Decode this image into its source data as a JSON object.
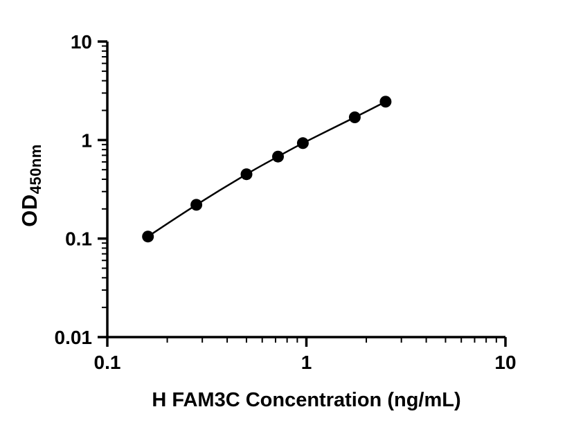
{
  "chart_data": {
    "type": "scatter",
    "title": "",
    "xlabel": "H FAM3C Concentration (ng/mL)",
    "ylabel_main": "OD",
    "ylabel_sub": "450nm",
    "x_scale": "log",
    "y_scale": "log",
    "xlim": [
      0.1,
      10
    ],
    "ylim": [
      0.01,
      10
    ],
    "x": [
      0.16,
      0.28,
      0.5,
      0.72,
      0.96,
      1.75,
      2.5
    ],
    "y": [
      0.105,
      0.22,
      0.45,
      0.68,
      0.93,
      1.7,
      2.45
    ],
    "x_ticks": [
      {
        "value": 0.1,
        "label": "0.1"
      },
      {
        "value": 1,
        "label": "1"
      },
      {
        "value": 10,
        "label": "10"
      }
    ],
    "y_ticks": [
      {
        "value": 0.01,
        "label": "0.01"
      },
      {
        "value": 0.1,
        "label": "0.1"
      },
      {
        "value": 1,
        "label": "1"
      },
      {
        "value": 10,
        "label": "10"
      }
    ],
    "minor_ticks": true,
    "legend": "none",
    "grid": false,
    "marker_color": "#000000",
    "line_color": "#000000",
    "axis_color": "#000000",
    "background": "#ffffff"
  }
}
